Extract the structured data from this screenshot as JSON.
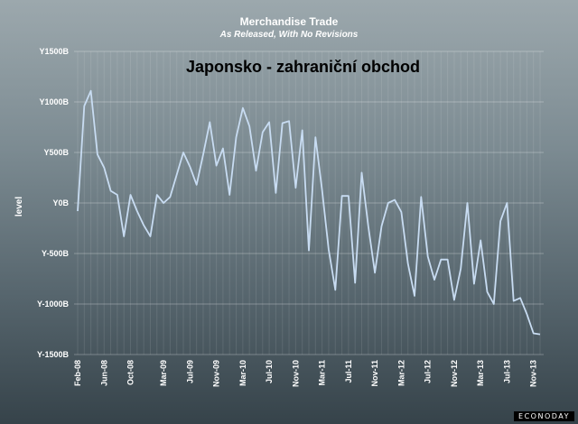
{
  "chart_data": {
    "type": "line",
    "title": "Merchandise Trade",
    "subtitle": "As Released, With No Revisions",
    "annotation": "Japonsko - zahraniční obchod",
    "ylabel": "level",
    "xlabel": "",
    "ylim": [
      -1500,
      1500
    ],
    "yticks": [
      1500,
      1000,
      500,
      0,
      -500,
      -1000,
      -1500
    ],
    "ytick_labels": [
      "Y1500B",
      "Y1000B",
      "Y500B",
      "Y0B",
      "Y-500B",
      "Y-1000B",
      "Y-1500B"
    ],
    "xtick_labels": [
      "Feb-08",
      "Jun-08",
      "Oct-08",
      "Mar-09",
      "Jul-09",
      "Nov-09",
      "Mar-10",
      "Jul-10",
      "Nov-10",
      "Mar-11",
      "Jul-11",
      "Nov-11",
      "Mar-12",
      "Jul-12",
      "Nov-12",
      "Mar-13",
      "Jul-13",
      "Nov-13"
    ],
    "xtick_positions": [
      0,
      4,
      8,
      13,
      17,
      21,
      25,
      29,
      33,
      37,
      41,
      45,
      49,
      53,
      57,
      61,
      65,
      69
    ],
    "grid": true,
    "line_color": "#c8dcf2",
    "series": [
      {
        "name": "",
        "values": [
          -80,
          960,
          1110,
          480,
          350,
          120,
          80,
          -330,
          80,
          -80,
          -220,
          -330,
          80,
          0,
          60,
          280,
          500,
          360,
          180,
          480,
          800,
          370,
          540,
          80,
          650,
          940,
          760,
          320,
          700,
          800,
          100,
          790,
          810,
          150,
          720,
          -470,
          650,
          130,
          -460,
          -860,
          70,
          70,
          -790,
          300,
          -230,
          -690,
          -230,
          0,
          30,
          -90,
          -600,
          -920,
          60,
          -530,
          -760,
          -560,
          -560,
          -960,
          -650,
          0,
          -800,
          -370,
          -880,
          -1000,
          -180,
          0,
          -970,
          -940,
          -1100,
          -1290,
          -1300
        ]
      }
    ]
  },
  "branding": {
    "logo": "ECONODAY"
  }
}
